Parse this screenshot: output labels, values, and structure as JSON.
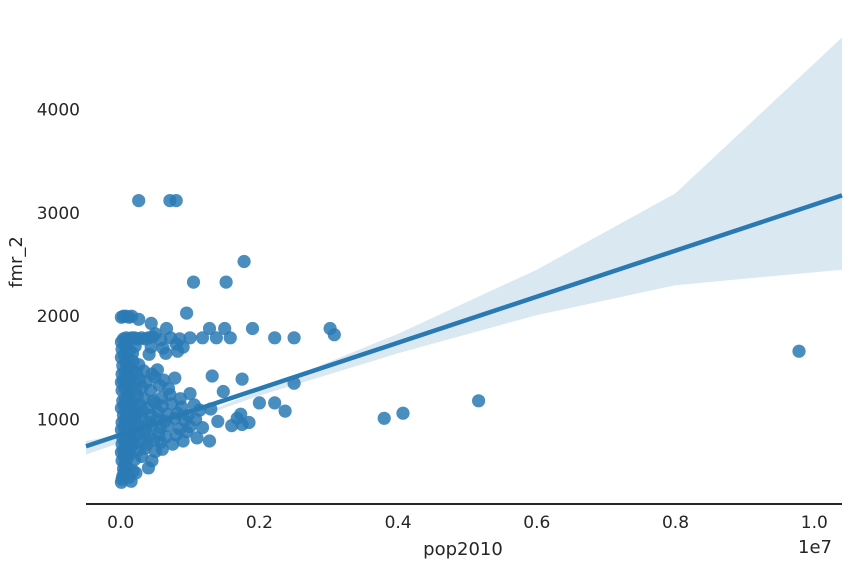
{
  "chart_data": {
    "type": "scatter",
    "title": "",
    "xlabel": "pop2010",
    "ylabel": "fmr_2",
    "x_offset_label": "1e7",
    "xlim": [
      -0.05,
      1.04
    ],
    "ylim": [
      180,
      4850
    ],
    "x_unit": "1e7",
    "x_ticks": [
      0.0,
      0.2,
      0.4,
      0.6,
      0.8,
      1.0
    ],
    "x_tick_labels": [
      "0.0",
      "0.2",
      "0.4",
      "0.6",
      "0.8",
      "1.0"
    ],
    "y_ticks": [
      1000,
      2000,
      3000,
      4000
    ],
    "y_tick_labels": [
      "1000",
      "2000",
      "3000",
      "4000"
    ],
    "grid": false,
    "colors": {
      "point": "#2a7ab5",
      "line": "#2979b3",
      "band": "#dae8f2",
      "axis": "#262626"
    },
    "regression": {
      "line": {
        "x": [
          -0.05,
          1.04
        ],
        "y": [
          740,
          3170
        ]
      },
      "ci_upper": [
        [
          -0.05,
          790
        ],
        [
          0.02,
          880
        ],
        [
          0.07,
          960
        ],
        [
          0.12,
          1060
        ],
        [
          0.2,
          1280
        ],
        [
          0.4,
          1830
        ],
        [
          0.6,
          2450
        ],
        [
          0.8,
          3190
        ],
        [
          1.04,
          4700
        ]
      ],
      "ci_lower": [
        [
          -0.05,
          660
        ],
        [
          0.02,
          820
        ],
        [
          0.07,
          930
        ],
        [
          0.12,
          1040
        ],
        [
          0.2,
          1230
        ],
        [
          0.4,
          1640
        ],
        [
          0.6,
          2010
        ],
        [
          0.8,
          2300
        ],
        [
          1.04,
          2450
        ]
      ]
    },
    "points": [
      [
        0.001,
        390
      ],
      [
        0.002,
        420
      ],
      [
        0.003,
        450
      ],
      [
        0.005,
        480
      ],
      [
        0.008,
        460
      ],
      [
        0.012,
        440
      ],
      [
        0.015,
        400
      ],
      [
        0.004,
        520
      ],
      [
        0.006,
        560
      ],
      [
        0.01,
        530
      ],
      [
        0.018,
        500
      ],
      [
        0.022,
        480
      ],
      [
        0.04,
        530
      ],
      [
        0.002,
        600
      ],
      [
        0.005,
        640
      ],
      [
        0.009,
        620
      ],
      [
        0.013,
        660
      ],
      [
        0.02,
        610
      ],
      [
        0.03,
        640
      ],
      [
        0.045,
        600
      ],
      [
        0.001,
        680
      ],
      [
        0.004,
        700
      ],
      [
        0.007,
        720
      ],
      [
        0.011,
        690
      ],
      [
        0.016,
        740
      ],
      [
        0.025,
        700
      ],
      [
        0.035,
        720
      ],
      [
        0.05,
        690
      ],
      [
        0.06,
        710
      ],
      [
        0.002,
        760
      ],
      [
        0.006,
        780
      ],
      [
        0.01,
        760
      ],
      [
        0.014,
        800
      ],
      [
        0.019,
        770
      ],
      [
        0.028,
        790
      ],
      [
        0.038,
        760
      ],
      [
        0.048,
        800
      ],
      [
        0.058,
        780
      ],
      [
        0.075,
        760
      ],
      [
        0.09,
        790
      ],
      [
        0.003,
        820
      ],
      [
        0.008,
        840
      ],
      [
        0.012,
        860
      ],
      [
        0.017,
        830
      ],
      [
        0.024,
        850
      ],
      [
        0.033,
        870
      ],
      [
        0.042,
        840
      ],
      [
        0.055,
        860
      ],
      [
        0.065,
        830
      ],
      [
        0.08,
        850
      ],
      [
        0.095,
        880
      ],
      [
        0.11,
        820
      ],
      [
        0.128,
        790
      ],
      [
        0.001,
        900
      ],
      [
        0.005,
        920
      ],
      [
        0.009,
        880
      ],
      [
        0.013,
        940
      ],
      [
        0.018,
        910
      ],
      [
        0.026,
        930
      ],
      [
        0.036,
        900
      ],
      [
        0.046,
        950
      ],
      [
        0.057,
        920
      ],
      [
        0.068,
        940
      ],
      [
        0.085,
        910
      ],
      [
        0.1,
        930
      ],
      [
        0.118,
        920
      ],
      [
        0.16,
        940
      ],
      [
        0.175,
        950
      ],
      [
        0.002,
        970
      ],
      [
        0.006,
        990
      ],
      [
        0.011,
        960
      ],
      [
        0.015,
        1000
      ],
      [
        0.021,
        980
      ],
      [
        0.03,
        1010
      ],
      [
        0.04,
        970
      ],
      [
        0.052,
        1000
      ],
      [
        0.063,
        980
      ],
      [
        0.078,
        1010
      ],
      [
        0.092,
        990
      ],
      [
        0.108,
        1000
      ],
      [
        0.14,
        980
      ],
      [
        0.168,
        1010
      ],
      [
        0.185,
        970
      ],
      [
        0.004,
        1040
      ],
      [
        0.008,
        1060
      ],
      [
        0.012,
        1030
      ],
      [
        0.017,
        1070
      ],
      [
        0.023,
        1050
      ],
      [
        0.032,
        1080
      ],
      [
        0.044,
        1040
      ],
      [
        0.054,
        1070
      ],
      [
        0.067,
        1050
      ],
      [
        0.082,
        1060
      ],
      [
        0.097,
        1040
      ],
      [
        0.114,
        1090
      ],
      [
        0.13,
        1100
      ],
      [
        0.173,
        1050
      ],
      [
        0.237,
        1080
      ],
      [
        0.38,
        1010
      ],
      [
        0.407,
        1060
      ],
      [
        0.001,
        1110
      ],
      [
        0.005,
        1130
      ],
      [
        0.01,
        1100
      ],
      [
        0.014,
        1150
      ],
      [
        0.02,
        1120
      ],
      [
        0.028,
        1140
      ],
      [
        0.039,
        1110
      ],
      [
        0.05,
        1160
      ],
      [
        0.06,
        1130
      ],
      [
        0.074,
        1150
      ],
      [
        0.088,
        1120
      ],
      [
        0.106,
        1140
      ],
      [
        0.2,
        1160
      ],
      [
        0.222,
        1160
      ],
      [
        0.003,
        1180
      ],
      [
        0.007,
        1200
      ],
      [
        0.012,
        1220
      ],
      [
        0.016,
        1190
      ],
      [
        0.024,
        1230
      ],
      [
        0.034,
        1200
      ],
      [
        0.047,
        1180
      ],
      [
        0.059,
        1210
      ],
      [
        0.071,
        1240
      ],
      [
        0.086,
        1200
      ],
      [
        0.1,
        1250
      ],
      [
        0.148,
        1270
      ],
      [
        0.516,
        1180
      ],
      [
        0.002,
        1280
      ],
      [
        0.006,
        1300
      ],
      [
        0.011,
        1270
      ],
      [
        0.015,
        1320
      ],
      [
        0.022,
        1290
      ],
      [
        0.031,
        1310
      ],
      [
        0.043,
        1280
      ],
      [
        0.056,
        1330
      ],
      [
        0.069,
        1300
      ],
      [
        0.25,
        1350
      ],
      [
        0.001,
        1360
      ],
      [
        0.004,
        1380
      ],
      [
        0.009,
        1350
      ],
      [
        0.013,
        1400
      ],
      [
        0.019,
        1370
      ],
      [
        0.027,
        1390
      ],
      [
        0.037,
        1360
      ],
      [
        0.049,
        1410
      ],
      [
        0.062,
        1380
      ],
      [
        0.078,
        1400
      ],
      [
        0.132,
        1420
      ],
      [
        0.175,
        1390
      ],
      [
        0.002,
        1440
      ],
      [
        0.006,
        1460
      ],
      [
        0.01,
        1430
      ],
      [
        0.016,
        1480
      ],
      [
        0.023,
        1450
      ],
      [
        0.033,
        1470
      ],
      [
        0.045,
        1440
      ],
      [
        0.053,
        1480
      ],
      [
        0.003,
        1520
      ],
      [
        0.008,
        1540
      ],
      [
        0.012,
        1510
      ],
      [
        0.018,
        1560
      ],
      [
        0.026,
        1530
      ],
      [
        0.001,
        1600
      ],
      [
        0.005,
        1620
      ],
      [
        0.011,
        1590
      ],
      [
        0.017,
        1640
      ],
      [
        0.041,
        1630
      ],
      [
        0.065,
        1640
      ],
      [
        0.082,
        1660
      ],
      [
        0.002,
        1680
      ],
      [
        0.007,
        1700
      ],
      [
        0.013,
        1670
      ],
      [
        0.021,
        1710
      ],
      [
        0.044,
        1700
      ],
      [
        0.061,
        1690
      ],
      [
        0.08,
        1730
      ],
      [
        0.09,
        1700
      ],
      [
        0.978,
        1660
      ],
      [
        0.001,
        1750
      ],
      [
        0.004,
        1780
      ],
      [
        0.008,
        1790
      ],
      [
        0.012,
        1780
      ],
      [
        0.016,
        1790
      ],
      [
        0.02,
        1790
      ],
      [
        0.025,
        1780
      ],
      [
        0.03,
        1790
      ],
      [
        0.035,
        1780
      ],
      [
        0.04,
        1790
      ],
      [
        0.046,
        1800
      ],
      [
        0.058,
        1770
      ],
      [
        0.072,
        1790
      ],
      [
        0.085,
        1780
      ],
      [
        0.1,
        1790
      ],
      [
        0.118,
        1790
      ],
      [
        0.138,
        1790
      ],
      [
        0.158,
        1790
      ],
      [
        0.222,
        1790
      ],
      [
        0.25,
        1790
      ],
      [
        0.308,
        1820
      ],
      [
        0.05,
        1830
      ],
      [
        0.066,
        1880
      ],
      [
        0.128,
        1880
      ],
      [
        0.15,
        1880
      ],
      [
        0.19,
        1880
      ],
      [
        0.302,
        1880
      ],
      [
        0.001,
        1990
      ],
      [
        0.004,
        2000
      ],
      [
        0.008,
        2000
      ],
      [
        0.012,
        1990
      ],
      [
        0.016,
        2000
      ],
      [
        0.026,
        1970
      ],
      [
        0.044,
        1930
      ],
      [
        0.095,
        2030
      ],
      [
        0.105,
        2330
      ],
      [
        0.152,
        2330
      ],
      [
        0.178,
        2530
      ],
      [
        0.026,
        3120
      ],
      [
        0.071,
        3120
      ],
      [
        0.08,
        3120
      ]
    ]
  }
}
